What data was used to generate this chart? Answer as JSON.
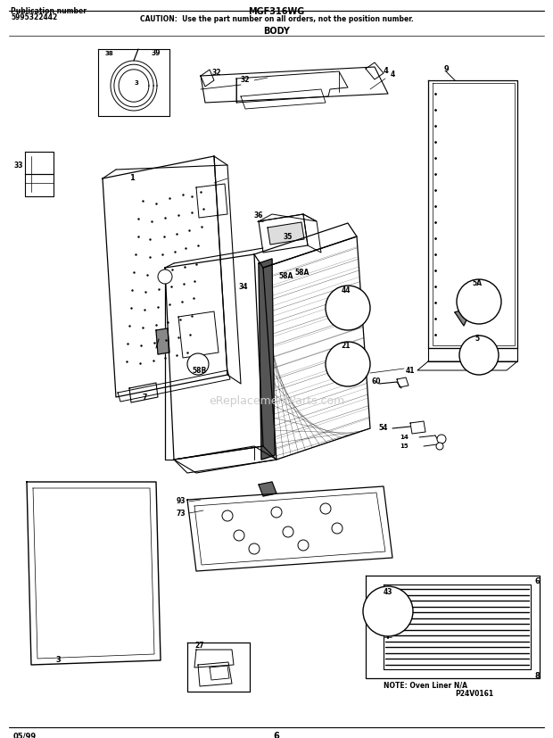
{
  "title_model": "MGF316WG",
  "caution_text": "CAUTION:  Use the part number on all orders, not the position number.",
  "section_title": "BODY",
  "pub_label": "Publication number",
  "pub_number": "5995322442",
  "footer_date": "05/99",
  "footer_page": "6",
  "watermark": "eReplacementParts.com",
  "bg_color": "#ffffff",
  "text_color": "#000000",
  "diagram_note": "NOTE: Oven Liner N/A",
  "part_code": "P24V0161",
  "fig_width": 6.2,
  "fig_height": 8.27,
  "dpi": 100
}
